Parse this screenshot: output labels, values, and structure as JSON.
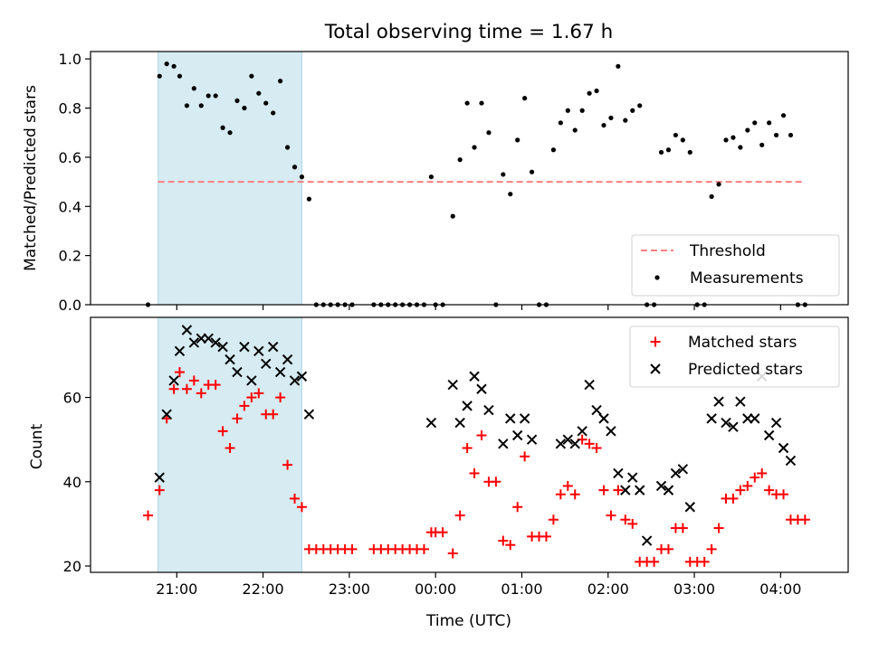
{
  "chart_data": [
    {
      "type": "scatter",
      "title": "Total observing time = 1.67 h",
      "xlabel": "",
      "ylabel": "Matched/Predicted stars",
      "ylim": [
        0,
        1.03
      ],
      "yticks": [
        "0.0",
        "0.2",
        "0.4",
        "0.6",
        "0.8",
        "1.0"
      ],
      "shaded_region": [
        "20:47",
        "22:27"
      ],
      "threshold": {
        "name": "Threshold",
        "value": 0.5,
        "color": "#ff7f7f",
        "style": "dashed"
      },
      "legend": "bottom-right",
      "series": [
        {
          "name": "Measurements",
          "color": "#000000",
          "marker": "dot",
          "points": [
            [
              "20:40",
              0.0
            ],
            [
              "20:48",
              0.93
            ],
            [
              "20:53",
              0.98
            ],
            [
              "20:58",
              0.97
            ],
            [
              "21:02",
              0.93
            ],
            [
              "21:07",
              0.81
            ],
            [
              "21:12",
              0.88
            ],
            [
              "21:17",
              0.81
            ],
            [
              "21:22",
              0.85
            ],
            [
              "21:27",
              0.85
            ],
            [
              "21:32",
              0.72
            ],
            [
              "21:37",
              0.7
            ],
            [
              "21:42",
              0.83
            ],
            [
              "21:47",
              0.8
            ],
            [
              "21:52",
              0.93
            ],
            [
              "21:57",
              0.86
            ],
            [
              "22:02",
              0.82
            ],
            [
              "22:07",
              0.78
            ],
            [
              "22:12",
              0.91
            ],
            [
              "22:17",
              0.64
            ],
            [
              "22:22",
              0.56
            ],
            [
              "22:27",
              0.52
            ],
            [
              "22:32",
              0.43
            ],
            [
              "22:37",
              0.0
            ],
            [
              "22:42",
              0.0
            ],
            [
              "22:47",
              0.0
            ],
            [
              "22:52",
              0.0
            ],
            [
              "22:57",
              0.0
            ],
            [
              "23:02",
              0.0
            ],
            [
              "23:17",
              0.0
            ],
            [
              "23:22",
              0.0
            ],
            [
              "23:27",
              0.0
            ],
            [
              "23:32",
              0.0
            ],
            [
              "23:37",
              0.0
            ],
            [
              "23:42",
              0.0
            ],
            [
              "23:47",
              0.0
            ],
            [
              "23:52",
              0.0
            ],
            [
              "23:57",
              0.52
            ],
            [
              "00:00",
              0.0
            ],
            [
              "00:05",
              0.0
            ],
            [
              "00:12",
              0.36
            ],
            [
              "00:17",
              0.59
            ],
            [
              "00:22",
              0.82
            ],
            [
              "00:27",
              0.64
            ],
            [
              "00:32",
              0.82
            ],
            [
              "00:37",
              0.7
            ],
            [
              "00:42",
              0.0
            ],
            [
              "00:47",
              0.53
            ],
            [
              "00:52",
              0.45
            ],
            [
              "00:57",
              0.67
            ],
            [
              "01:02",
              0.84
            ],
            [
              "01:07",
              0.54
            ],
            [
              "01:12",
              0.0
            ],
            [
              "01:17",
              0.0
            ],
            [
              "01:22",
              0.63
            ],
            [
              "01:27",
              0.74
            ],
            [
              "01:32",
              0.79
            ],
            [
              "01:37",
              0.71
            ],
            [
              "01:42",
              0.79
            ],
            [
              "01:47",
              0.86
            ],
            [
              "01:52",
              0.87
            ],
            [
              "01:57",
              0.73
            ],
            [
              "02:02",
              0.76
            ],
            [
              "02:07",
              0.97
            ],
            [
              "02:12",
              0.75
            ],
            [
              "02:17",
              0.79
            ],
            [
              "02:22",
              0.81
            ],
            [
              "02:27",
              0.0
            ],
            [
              "02:32",
              0.0
            ],
            [
              "02:37",
              0.62
            ],
            [
              "02:42",
              0.63
            ],
            [
              "02:47",
              0.69
            ],
            [
              "02:52",
              0.67
            ],
            [
              "02:57",
              0.62
            ],
            [
              "03:02",
              0.0
            ],
            [
              "03:07",
              0.0
            ],
            [
              "03:12",
              0.44
            ],
            [
              "03:17",
              0.49
            ],
            [
              "03:22",
              0.67
            ],
            [
              "03:27",
              0.68
            ],
            [
              "03:32",
              0.64
            ],
            [
              "03:37",
              0.71
            ],
            [
              "03:42",
              0.74
            ],
            [
              "03:47",
              0.65
            ],
            [
              "03:52",
              0.74
            ],
            [
              "03:57",
              0.69
            ],
            [
              "04:02",
              0.77
            ],
            [
              "04:07",
              0.69
            ],
            [
              "04:12",
              0.0
            ],
            [
              "04:17",
              0.0
            ]
          ]
        }
      ]
    },
    {
      "type": "scatter",
      "title": "",
      "xlabel": "Time (UTC)",
      "ylabel": "Count",
      "ylim": [
        18.5,
        79
      ],
      "yticks": [
        "20",
        "40",
        "60"
      ],
      "xticks": [
        "21:00",
        "22:00",
        "23:00",
        "00:00",
        "01:00",
        "02:00",
        "03:00",
        "04:00"
      ],
      "shaded_region": [
        "20:47",
        "22:27"
      ],
      "legend": "top-right",
      "series": [
        {
          "name": "Matched stars",
          "color": "#ff0000",
          "marker": "plus",
          "points": [
            [
              "20:40",
              32
            ],
            [
              "20:48",
              38
            ],
            [
              "20:53",
              55
            ],
            [
              "20:58",
              62
            ],
            [
              "21:02",
              66
            ],
            [
              "21:07",
              62
            ],
            [
              "21:12",
              64
            ],
            [
              "21:17",
              61
            ],
            [
              "21:22",
              63
            ],
            [
              "21:27",
              63
            ],
            [
              "21:32",
              52
            ],
            [
              "21:37",
              48
            ],
            [
              "21:42",
              55
            ],
            [
              "21:47",
              58
            ],
            [
              "21:52",
              60
            ],
            [
              "21:57",
              61
            ],
            [
              "22:02",
              56
            ],
            [
              "22:07",
              56
            ],
            [
              "22:12",
              60
            ],
            [
              "22:17",
              44
            ],
            [
              "22:22",
              36
            ],
            [
              "22:27",
              34
            ],
            [
              "22:32",
              24
            ],
            [
              "22:37",
              24
            ],
            [
              "22:42",
              24
            ],
            [
              "22:47",
              24
            ],
            [
              "22:52",
              24
            ],
            [
              "22:57",
              24
            ],
            [
              "23:02",
              24
            ],
            [
              "23:17",
              24
            ],
            [
              "23:22",
              24
            ],
            [
              "23:27",
              24
            ],
            [
              "23:32",
              24
            ],
            [
              "23:37",
              24
            ],
            [
              "23:42",
              24
            ],
            [
              "23:47",
              24
            ],
            [
              "23:52",
              24
            ],
            [
              "23:57",
              28
            ],
            [
              "00:00",
              28
            ],
            [
              "00:05",
              28
            ],
            [
              "00:12",
              23
            ],
            [
              "00:17",
              32
            ],
            [
              "00:22",
              48
            ],
            [
              "00:27",
              42
            ],
            [
              "00:32",
              51
            ],
            [
              "00:37",
              40
            ],
            [
              "00:42",
              40
            ],
            [
              "00:47",
              26
            ],
            [
              "00:52",
              25
            ],
            [
              "00:57",
              34
            ],
            [
              "01:02",
              46
            ],
            [
              "01:07",
              27
            ],
            [
              "01:12",
              27
            ],
            [
              "01:17",
              27
            ],
            [
              "01:22",
              31
            ],
            [
              "01:27",
              37
            ],
            [
              "01:32",
              39
            ],
            [
              "01:37",
              37
            ],
            [
              "01:42",
              50
            ],
            [
              "01:47",
              49
            ],
            [
              "01:52",
              48
            ],
            [
              "01:57",
              38
            ],
            [
              "02:02",
              32
            ],
            [
              "02:07",
              38
            ],
            [
              "02:12",
              31
            ],
            [
              "02:17",
              30
            ],
            [
              "02:22",
              21
            ],
            [
              "02:27",
              21
            ],
            [
              "02:32",
              21
            ],
            [
              "02:37",
              24
            ],
            [
              "02:42",
              24
            ],
            [
              "02:47",
              29
            ],
            [
              "02:52",
              29
            ],
            [
              "02:57",
              21
            ],
            [
              "03:02",
              21
            ],
            [
              "03:07",
              21
            ],
            [
              "03:12",
              24
            ],
            [
              "03:17",
              29
            ],
            [
              "03:22",
              36
            ],
            [
              "03:27",
              36
            ],
            [
              "03:32",
              38
            ],
            [
              "03:37",
              39
            ],
            [
              "03:42",
              41
            ],
            [
              "03:47",
              42
            ],
            [
              "03:52",
              38
            ],
            [
              "03:57",
              37
            ],
            [
              "04:02",
              37
            ],
            [
              "04:07",
              31
            ],
            [
              "04:12",
              31
            ],
            [
              "04:17",
              31
            ]
          ]
        },
        {
          "name": "Predicted stars",
          "color": "#000000",
          "marker": "x",
          "points": [
            [
              "20:48",
              41
            ],
            [
              "20:53",
              56
            ],
            [
              "20:58",
              64
            ],
            [
              "21:02",
              71
            ],
            [
              "21:07",
              76
            ],
            [
              "21:12",
              73
            ],
            [
              "21:17",
              74
            ],
            [
              "21:22",
              74
            ],
            [
              "21:27",
              73
            ],
            [
              "21:32",
              72
            ],
            [
              "21:37",
              69
            ],
            [
              "21:42",
              66
            ],
            [
              "21:47",
              72
            ],
            [
              "21:52",
              64
            ],
            [
              "21:57",
              71
            ],
            [
              "22:02",
              68
            ],
            [
              "22:07",
              72
            ],
            [
              "22:12",
              66
            ],
            [
              "22:17",
              69
            ],
            [
              "22:22",
              64
            ],
            [
              "22:27",
              65
            ],
            [
              "22:32",
              56
            ],
            [
              "23:57",
              54
            ],
            [
              "00:12",
              63
            ],
            [
              "00:17",
              54
            ],
            [
              "00:22",
              58
            ],
            [
              "00:27",
              65
            ],
            [
              "00:32",
              62
            ],
            [
              "00:37",
              57
            ],
            [
              "00:47",
              49
            ],
            [
              "00:52",
              55
            ],
            [
              "00:57",
              51
            ],
            [
              "01:02",
              55
            ],
            [
              "01:07",
              50
            ],
            [
              "01:27",
              49
            ],
            [
              "01:32",
              50
            ],
            [
              "01:37",
              49
            ],
            [
              "01:42",
              52
            ],
            [
              "01:47",
              63
            ],
            [
              "01:52",
              57
            ],
            [
              "01:57",
              55
            ],
            [
              "02:02",
              52
            ],
            [
              "02:07",
              42
            ],
            [
              "02:12",
              38
            ],
            [
              "02:17",
              41
            ],
            [
              "02:22",
              38
            ],
            [
              "02:27",
              26
            ],
            [
              "02:37",
              39
            ],
            [
              "02:42",
              38
            ],
            [
              "02:47",
              42
            ],
            [
              "02:52",
              43
            ],
            [
              "02:57",
              34
            ],
            [
              "03:12",
              55
            ],
            [
              "03:17",
              59
            ],
            [
              "03:22",
              54
            ],
            [
              "03:27",
              53
            ],
            [
              "03:32",
              59
            ],
            [
              "03:37",
              55
            ],
            [
              "03:42",
              55
            ],
            [
              "03:47",
              65
            ],
            [
              "03:52",
              51
            ],
            [
              "03:57",
              54
            ],
            [
              "04:02",
              48
            ],
            [
              "04:07",
              45
            ]
          ]
        }
      ]
    }
  ]
}
